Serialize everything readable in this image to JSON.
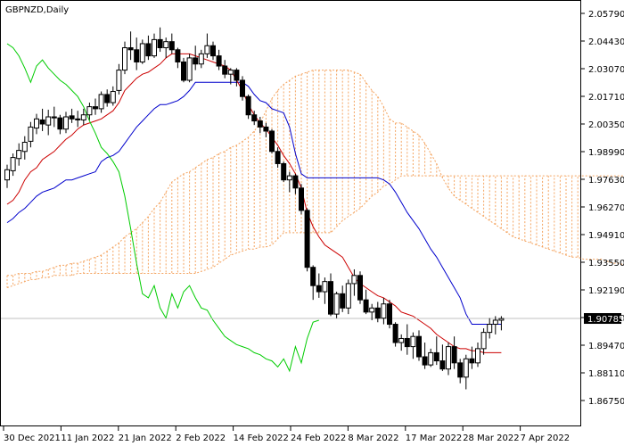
{
  "chart_data": {
    "type": "candlestick",
    "title": "GBPNZD,Daily",
    "current_price": "1.90785",
    "price_range": [
      1.8675,
      2.0579
    ],
    "y_ticks": [
      "2.05790",
      "2.04430",
      "2.03070",
      "2.01710",
      "2.00350",
      "1.98990",
      "1.97630",
      "1.96270",
      "1.94910",
      "1.93550",
      "1.92190",
      "1.90830",
      "1.89470",
      "1.88110",
      "1.86750"
    ],
    "x_labels": [
      "30 Dec 2021",
      "11 Jan 2022",
      "21 Jan 2022",
      "2 Feb 2022",
      "14 Feb 2022",
      "24 Feb 2022",
      "8 Mar 2022",
      "17 Mar 2022",
      "28 Mar 2022",
      "7 Apr 2022"
    ],
    "colors": {
      "bull_fill": "#ffffff",
      "bear_fill": "#000000",
      "candle_outline": "#000000",
      "tenkan_sen": "#cc0000",
      "kijun_sen": "#0000cc",
      "chikou_span": "#00cc00",
      "cloud": "#f4a460",
      "price_line": "#c0c0c0"
    },
    "candles": [
      [
        1.976,
        1.9835,
        1.972,
        1.981
      ],
      [
        1.9805,
        1.989,
        1.978,
        1.987
      ],
      [
        1.9865,
        1.994,
        1.983,
        1.9905
      ],
      [
        1.99,
        1.9975,
        1.986,
        1.9945
      ],
      [
        1.995,
        2.0045,
        1.992,
        2.002
      ],
      [
        2.0015,
        2.0085,
        1.9985,
        2.006
      ],
      [
        2.0055,
        2.011,
        2.0,
        2.0035
      ],
      [
        2.003,
        2.0105,
        1.998,
        2.007
      ],
      [
        2.007,
        2.012,
        2.002,
        2.0065
      ],
      [
        2.0065,
        2.008,
        1.9985,
        2.001
      ],
      [
        2.001,
        2.0095,
        1.999,
        2.007
      ],
      [
        2.0075,
        2.011,
        2.004,
        2.006
      ],
      [
        2.006,
        2.01,
        2.002,
        2.0055
      ],
      [
        2.0055,
        2.011,
        2.003,
        2.008
      ],
      [
        2.008,
        2.014,
        2.0055,
        2.012
      ],
      [
        2.012,
        2.016,
        2.008,
        2.011
      ],
      [
        2.011,
        2.0195,
        2.009,
        2.018
      ],
      [
        2.018,
        2.0205,
        2.012,
        2.014
      ],
      [
        2.014,
        2.022,
        2.0125,
        2.0195
      ],
      [
        2.02,
        2.033,
        2.018,
        2.03
      ],
      [
        2.03,
        2.044,
        2.028,
        2.041
      ],
      [
        2.041,
        2.049,
        2.035,
        2.04
      ],
      [
        2.04,
        2.046,
        2.03,
        2.034
      ],
      [
        2.034,
        2.045,
        2.033,
        2.043
      ],
      [
        2.043,
        2.047,
        2.035,
        2.037
      ],
      [
        2.037,
        2.048,
        2.036,
        2.045
      ],
      [
        2.045,
        2.051,
        2.039,
        2.041
      ],
      [
        2.041,
        2.046,
        2.036,
        2.044
      ],
      [
        2.044,
        2.048,
        2.038,
        2.04
      ],
      [
        2.04,
        2.041,
        2.031,
        2.034
      ],
      [
        2.034,
        2.036,
        2.024,
        2.025
      ],
      [
        2.025,
        2.038,
        2.024,
        2.036
      ],
      [
        2.036,
        2.042,
        2.03,
        2.033
      ],
      [
        2.033,
        2.04,
        2.031,
        2.038
      ],
      [
        2.038,
        2.048,
        2.036,
        2.042
      ],
      [
        2.042,
        2.044,
        2.035,
        2.037
      ],
      [
        2.037,
        2.04,
        2.03,
        2.032
      ],
      [
        2.032,
        2.035,
        2.026,
        2.028
      ],
      [
        2.028,
        2.031,
        2.023,
        2.03
      ],
      [
        2.03,
        2.031,
        2.022,
        2.025
      ],
      [
        2.025,
        2.027,
        2.015,
        2.017
      ],
      [
        2.017,
        2.018,
        2.006,
        2.008
      ],
      [
        2.008,
        2.01,
        2.003,
        2.005
      ],
      [
        2.005,
        2.007,
        1.999,
        2.002
      ],
      [
        2.002,
        2.004,
        1.997,
        2.0
      ],
      [
        2.0,
        2.001,
        1.989,
        1.99
      ],
      [
        1.99,
        1.992,
        1.982,
        1.984
      ],
      [
        1.984,
        1.985,
        1.975,
        1.976
      ],
      [
        1.976,
        1.98,
        1.97,
        1.978
      ],
      [
        1.978,
        1.979,
        1.969,
        1.972
      ],
      [
        1.972,
        1.974,
        1.959,
        1.961
      ],
      [
        1.961,
        1.962,
        1.931,
        1.933
      ],
      [
        1.933,
        1.934,
        1.917,
        1.924
      ],
      [
        1.924,
        1.93,
        1.918,
        1.921
      ],
      [
        1.921,
        1.928,
        1.915,
        1.926
      ],
      [
        1.926,
        1.93,
        1.909,
        1.91
      ],
      [
        1.91,
        1.921,
        1.908,
        1.92
      ],
      [
        1.92,
        1.924,
        1.911,
        1.913
      ],
      [
        1.913,
        1.927,
        1.91,
        1.925
      ],
      [
        1.925,
        1.932,
        1.919,
        1.929
      ],
      [
        1.929,
        1.931,
        1.915,
        1.917
      ],
      [
        1.917,
        1.922,
        1.91,
        1.911
      ],
      [
        1.911,
        1.915,
        1.907,
        1.913
      ],
      [
        1.913,
        1.916,
        1.906,
        1.908
      ],
      [
        1.908,
        1.918,
        1.905,
        1.915
      ],
      [
        1.915,
        1.917,
        1.903,
        1.905
      ],
      [
        1.905,
        1.906,
        1.894,
        1.896
      ],
      [
        1.896,
        1.9,
        1.892,
        1.898
      ],
      [
        1.898,
        1.905,
        1.89,
        1.894
      ],
      [
        1.894,
        1.901,
        1.888,
        1.899
      ],
      [
        1.899,
        1.902,
        1.887,
        1.889
      ],
      [
        1.889,
        1.896,
        1.883,
        1.885
      ],
      [
        1.885,
        1.893,
        1.884,
        1.891
      ],
      [
        1.891,
        1.899,
        1.885,
        1.887
      ],
      [
        1.887,
        1.895,
        1.882,
        1.883
      ],
      [
        1.883,
        1.896,
        1.88,
        1.894
      ],
      [
        1.894,
        1.899,
        1.883,
        1.886
      ],
      [
        1.886,
        1.888,
        1.876,
        1.879
      ],
      [
        1.879,
        1.89,
        1.873,
        1.888
      ],
      [
        1.888,
        1.894,
        1.883,
        1.886
      ],
      [
        1.886,
        1.896,
        1.884,
        1.893
      ],
      [
        1.893,
        1.903,
        1.89,
        1.901
      ],
      [
        1.901,
        1.908,
        1.898,
        1.905
      ],
      [
        1.905,
        1.909,
        1.9,
        1.907
      ],
      [
        1.907,
        1.909,
        1.902,
        1.9078
      ]
    ],
    "tenkan_sen": [
      1.964,
      1.966,
      1.97,
      1.976,
      1.98,
      1.982,
      1.986,
      1.988,
      1.99,
      1.993,
      1.996,
      1.998,
      2.001,
      2.003,
      2.004,
      2.005,
      2.006,
      2.008,
      2.01,
      2.014,
      2.02,
      2.023,
      2.026,
      2.028,
      2.029,
      2.031,
      2.033,
      2.036,
      2.038,
      2.038,
      2.038,
      2.038,
      2.037,
      2.036,
      2.035,
      2.034,
      2.033,
      2.032,
      2.03,
      2.025,
      2.02,
      2.013,
      2.008,
      2.004,
      2.001,
      1.997,
      1.993,
      1.988,
      1.984,
      1.979,
      1.972,
      1.96,
      1.953,
      1.948,
      1.944,
      1.942,
      1.94,
      1.938,
      1.933,
      1.928,
      1.925,
      1.923,
      1.921,
      1.919,
      1.918,
      1.916,
      1.914,
      1.911,
      1.91,
      1.909,
      1.907,
      1.905,
      1.903,
      1.9,
      1.898,
      1.896,
      1.894,
      1.893,
      1.893,
      1.892,
      1.892,
      1.891,
      1.891,
      1.891,
      1.891
    ],
    "kijun_sen": [
      1.955,
      1.957,
      1.96,
      1.962,
      1.965,
      1.968,
      1.97,
      1.971,
      1.972,
      1.974,
      1.976,
      1.976,
      1.977,
      1.978,
      1.979,
      1.98,
      1.985,
      1.987,
      1.988,
      1.99,
      1.994,
      1.998,
      2.002,
      2.005,
      2.008,
      2.011,
      2.013,
      2.013,
      2.014,
      2.015,
      2.017,
      2.02,
      2.024,
      2.024,
      2.024,
      2.024,
      2.024,
      2.024,
      2.024,
      2.024,
      2.024,
      2.022,
      2.018,
      2.015,
      2.014,
      2.011,
      2.01,
      2.009,
      2.002,
      1.989,
      1.979,
      1.977,
      1.977,
      1.977,
      1.977,
      1.977,
      1.977,
      1.977,
      1.977,
      1.977,
      1.977,
      1.977,
      1.977,
      1.977,
      1.976,
      1.974,
      1.97,
      1.965,
      1.96,
      1.956,
      1.952,
      1.947,
      1.942,
      1.938,
      1.933,
      1.928,
      1.923,
      1.918,
      1.91,
      1.905,
      1.905,
      1.905,
      1.905,
      1.905,
      1.905
    ],
    "chikou_span": [
      2.043,
      2.041,
      2.037,
      2.031,
      2.024,
      2.032,
      2.035,
      2.031,
      2.028,
      2.025,
      2.023,
      2.02,
      2.017,
      2.012,
      2.005,
      1.999,
      1.992,
      1.989,
      1.985,
      1.98,
      1.968,
      1.952,
      1.935,
      1.92,
      1.918,
      1.924,
      1.913,
      1.908,
      1.92,
      1.913,
      1.921,
      1.924,
      1.918,
      1.913,
      1.912,
      1.907,
      1.903,
      1.899,
      1.897,
      1.895,
      1.894,
      1.893,
      1.891,
      1.89,
      1.888,
      1.887,
      1.884,
      1.888,
      1.882,
      1.894,
      1.886,
      1.898,
      1.906,
      1.907
    ],
    "span_a": [
      1.929,
      1.929,
      1.93,
      1.93,
      1.93,
      1.931,
      1.931,
      1.932,
      1.933,
      1.934,
      1.934,
      1.935,
      1.935,
      1.936,
      1.937,
      1.938,
      1.939,
      1.941,
      1.943,
      1.945,
      1.948,
      1.95,
      1.952,
      1.955,
      1.958,
      1.962,
      1.965,
      1.97,
      1.975,
      1.977,
      1.979,
      1.98,
      1.982,
      1.984,
      1.986,
      1.987,
      1.989,
      1.99,
      1.992,
      1.993,
      1.995,
      1.997,
      2.0,
      2.004,
      2.01,
      2.016,
      2.02,
      2.023,
      2.025,
      2.027,
      2.028,
      2.029,
      2.03,
      2.03,
      2.03,
      2.03,
      2.03,
      2.03,
      2.03,
      2.029,
      2.028,
      2.024,
      2.02,
      2.017,
      2.012,
      2.006,
      2.004,
      2.004,
      2.002,
      2.0,
      1.998,
      1.994,
      1.989,
      1.984,
      1.977,
      1.972,
      1.968,
      1.966,
      1.964,
      1.962,
      1.96,
      1.958,
      1.956,
      1.954,
      1.952,
      1.95,
      1.948,
      1.947,
      1.946,
      1.945,
      1.944,
      1.943,
      1.942,
      1.941,
      1.94,
      1.939,
      1.938,
      1.938,
      1.937,
      1.937,
      1.937,
      1.937,
      1.936,
      1.935,
      1.935,
      1.934,
      1.934,
      1.934,
      1.934,
      1.934,
      1.934
    ],
    "span_b": [
      1.923,
      1.924,
      1.925,
      1.926,
      1.927,
      1.927,
      1.928,
      1.928,
      1.929,
      1.929,
      1.929,
      1.929,
      1.93,
      1.93,
      1.93,
      1.93,
      1.93,
      1.93,
      1.93,
      1.93,
      1.93,
      1.93,
      1.93,
      1.93,
      1.93,
      1.93,
      1.93,
      1.93,
      1.93,
      1.93,
      1.93,
      1.93,
      1.93,
      1.931,
      1.932,
      1.933,
      1.935,
      1.937,
      1.939,
      1.94,
      1.941,
      1.942,
      1.942,
      1.943,
      1.943,
      1.944,
      1.947,
      1.95,
      1.95,
      1.95,
      1.95,
      1.95,
      1.95,
      1.95,
      1.95,
      1.95,
      1.953,
      1.956,
      1.958,
      1.96,
      1.962,
      1.965,
      1.968,
      1.97,
      1.973,
      1.974,
      1.976,
      1.978,
      1.978,
      1.978,
      1.978,
      1.978,
      1.978,
      1.978,
      1.978,
      1.978,
      1.978,
      1.978,
      1.978,
      1.978,
      1.978,
      1.978,
      1.978,
      1.978,
      1.978,
      1.978,
      1.978,
      1.978,
      1.978,
      1.978,
      1.978,
      1.978,
      1.978,
      1.978,
      1.978,
      1.978,
      1.978,
      1.978,
      1.978,
      1.978,
      1.978,
      1.978,
      1.978,
      1.978,
      1.978,
      1.978,
      1.978,
      1.978,
      1.978,
      1.978,
      1.978,
      1.978
    ]
  }
}
